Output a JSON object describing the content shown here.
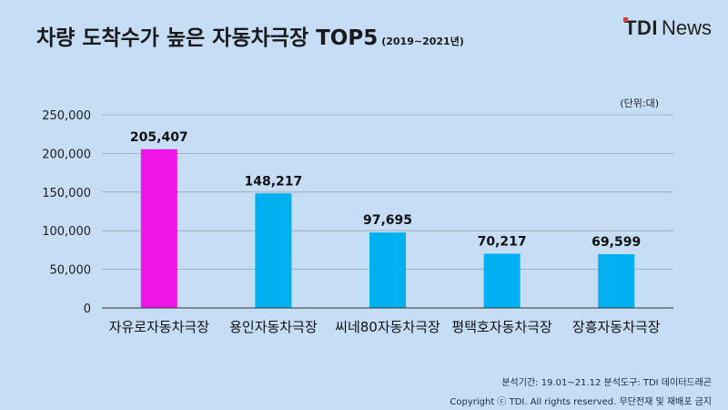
{
  "header": {
    "title": "차량 도착수가 높은 자동차극장 TOP5",
    "period": "(2019~2021년)"
  },
  "logo": {
    "brand": "TDI",
    "suffix": "News"
  },
  "chart_data": {
    "type": "bar",
    "unit_label": "(단위:대)",
    "categories": [
      "자유로자동차극장",
      "용인자동차극장",
      "씨네80자동차극장",
      "평택호자동차극장",
      "장흥자동차극장"
    ],
    "values": [
      205407,
      148217,
      97695,
      70217,
      69599
    ],
    "value_labels": [
      "205,407",
      "148,217",
      "97,695",
      "70,217",
      "69,599"
    ],
    "ylim": [
      0,
      250000
    ],
    "yticks": [
      0,
      50000,
      100000,
      150000,
      200000,
      250000
    ],
    "ytick_labels": [
      "0",
      "50,000",
      "100,000",
      "150,000",
      "200,000",
      "250,000"
    ],
    "colors": [
      "#f014e8",
      "#00b0f0",
      "#00b0f0",
      "#00b0f0",
      "#00b0f0"
    ],
    "grid": true
  },
  "footer": {
    "analysis_line": "분석기간: 19.01~21.12   분석도구: TDI 데이터드래곤",
    "copyright_line": "Copyright ⓒ TDI. All rights reserved. 무단전재 및 재배포 금지"
  }
}
